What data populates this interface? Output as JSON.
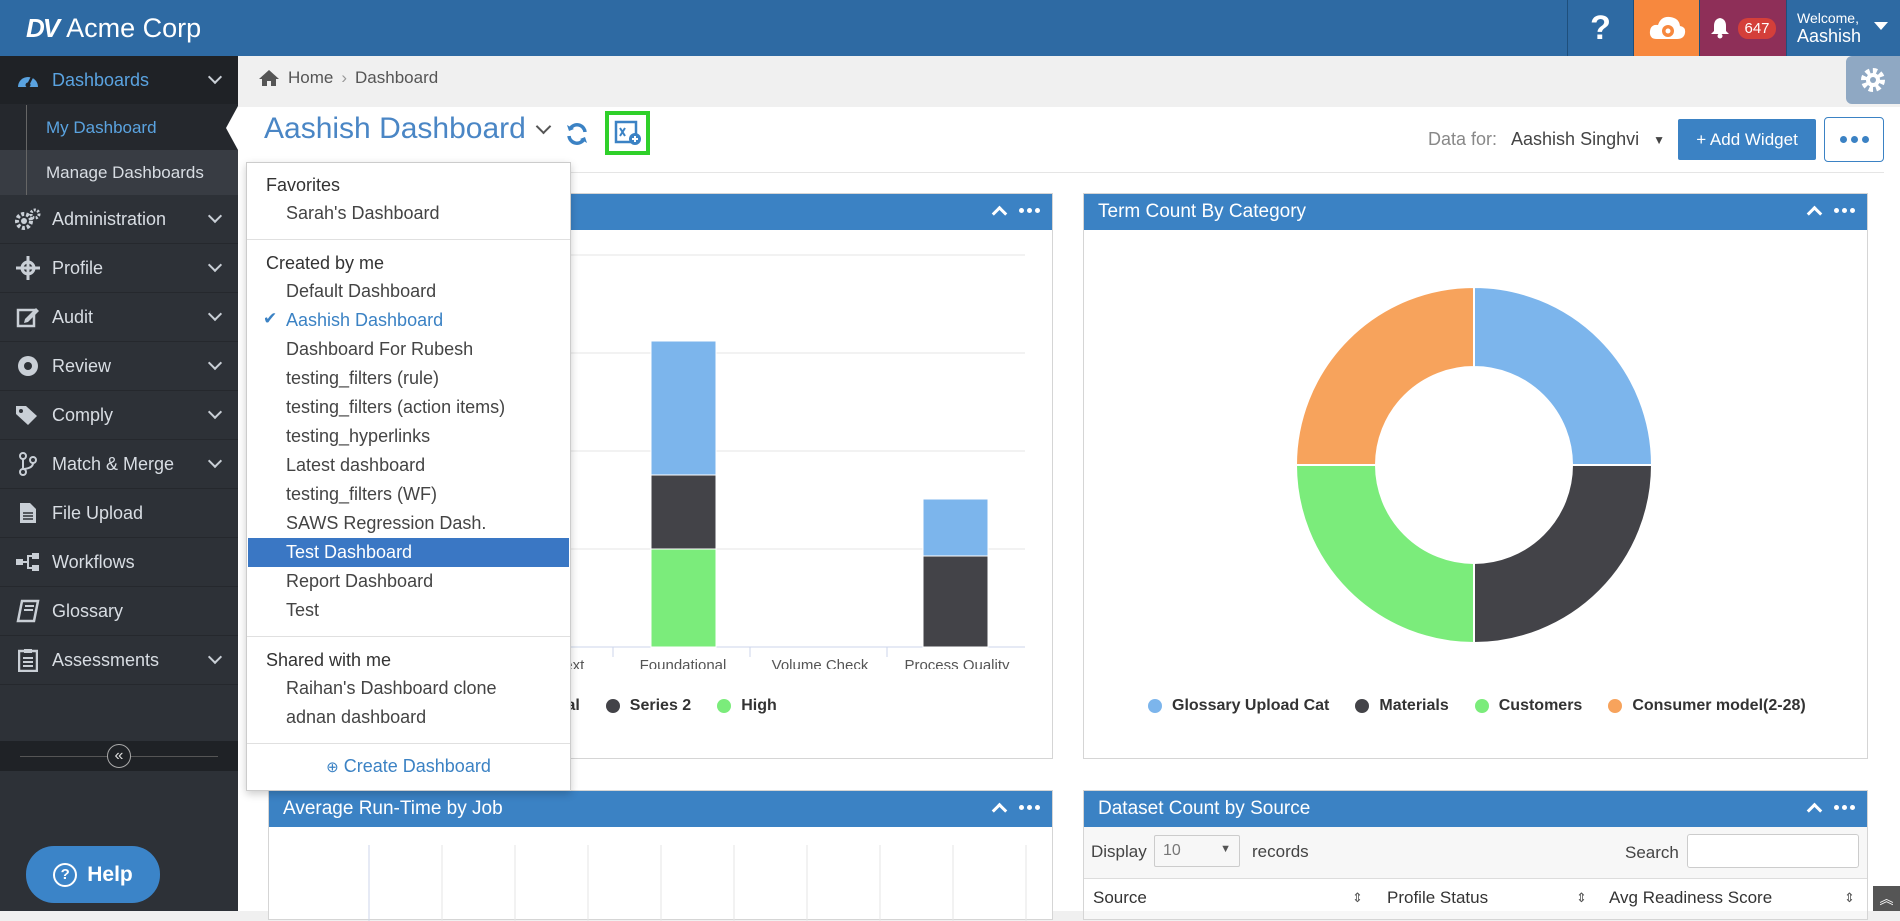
{
  "app": {
    "brand_logo": "DV",
    "brand_name": "Acme Corp"
  },
  "topbar": {
    "help_label": "?",
    "notifications_count": "647",
    "welcome_label": "Welcome,",
    "user_name": "Aashish"
  },
  "sidebar": {
    "items": [
      {
        "label": "Dashboards",
        "icon": "dashboard-icon"
      },
      {
        "label": "Administration",
        "icon": "gears-icon"
      },
      {
        "label": "Profile",
        "icon": "profile-icon"
      },
      {
        "label": "Audit",
        "icon": "edit-icon"
      },
      {
        "label": "Review",
        "icon": "compass-icon"
      },
      {
        "label": "Comply",
        "icon": "tags-icon"
      },
      {
        "label": "Match & Merge",
        "icon": "merge-icon"
      },
      {
        "label": "File Upload",
        "icon": "file-icon"
      },
      {
        "label": "Workflows",
        "icon": "workflow-icon"
      },
      {
        "label": "Glossary",
        "icon": "book-icon"
      },
      {
        "label": "Assessments",
        "icon": "clipboard-icon"
      }
    ],
    "sub": {
      "my_dashboard": "My Dashboard",
      "manage_dashboards": "Manage Dashboards"
    },
    "help_label": "Help"
  },
  "breadcrumb": {
    "home": "Home",
    "current": "Dashboard"
  },
  "dashboard": {
    "title": "Aashish Dashboard",
    "data_for_label": "Data for:",
    "data_for_value": "Aashish Singhvi",
    "add_widget_label": "+ Add Widget"
  },
  "dropdown": {
    "favorites_label": "Favorites",
    "favorites": [
      "Sarah's Dashboard"
    ],
    "created_label": "Created by me",
    "created": [
      "Default Dashboard",
      "Aashish Dashboard",
      "Dashboard For Rubesh",
      "testing_filters (rule)",
      "testing_filters (action items)",
      "testing_hyperlinks",
      "Latest dashboard",
      "testing_filters (WF)",
      "SAWS Regression Dash.",
      "Test Dashboard",
      "Report Dashboard",
      "Test"
    ],
    "shared_label": "Shared with me",
    "shared": [
      "Raihan's Dashboard clone",
      "adnan dashboard"
    ],
    "create_label": "Create Dashboard"
  },
  "widgets": {
    "w1": {
      "x_labels": [
        "ntext",
        "Foundational",
        "Volume Check",
        "Process Quality"
      ],
      "legend": [
        "rmal",
        "Series 2",
        "High"
      ]
    },
    "w2": {
      "title": "Term Count By Category",
      "legend": [
        "Glossary Upload Cat",
        "Materials",
        "Customers",
        "Consumer model(2-28)"
      ]
    },
    "w3": {
      "title": "Average Run-Time by Job"
    },
    "w4": {
      "title": "Dataset Count by Source",
      "display_label": "Display",
      "display_value": "10",
      "records_label": "records",
      "search_label": "Search",
      "columns": [
        "Source",
        "Profile Status",
        "Avg Readiness Score"
      ]
    }
  },
  "colors": {
    "blue": "#7cb5ec",
    "dark": "#434348",
    "green": "#7bec7b",
    "orange": "#f7a35c",
    "accent": "#3b82c4"
  },
  "chart_data": [
    {
      "type": "bar",
      "categories": [
        "ntext",
        "Foundational",
        "Volume Check",
        "Process Quality"
      ],
      "series": [
        {
          "name": "rmal",
          "values": [
            null,
            null,
            null,
            null
          ]
        },
        {
          "name": "Series 2",
          "values": [
            null,
            1.5,
            null,
            1.8
          ]
        },
        {
          "name": "High",
          "values": [
            null,
            2,
            null,
            0
          ]
        }
      ]
    },
    {
      "type": "pie",
      "title": "Term Count By Category",
      "labels": [
        "Glossary Upload Cat",
        "Materials",
        "Customers",
        "Consumer model(2-28)"
      ],
      "values": [
        25,
        25,
        25,
        25
      ]
    }
  ]
}
